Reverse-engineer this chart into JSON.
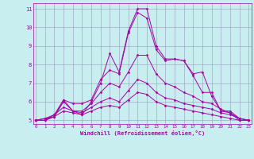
{
  "xlabel": "Windchill (Refroidissement éolien,°C)",
  "background_color": "#c8eef0",
  "line_color": "#aa00aa",
  "grid_color": "#9999bb",
  "xmin": 0,
  "xmax": 23,
  "ymin": 5,
  "ymax": 11,
  "lines": [
    [
      5.0,
      5.0,
      5.2,
      6.1,
      5.5,
      5.3,
      6.0,
      7.0,
      8.6,
      7.6,
      9.8,
      11.0,
      11.0,
      9.0,
      8.3,
      8.3,
      8.2,
      7.5,
      7.6,
      6.3,
      5.5,
      5.4,
      5.0,
      5.0
    ],
    [
      5.0,
      5.0,
      5.3,
      6.1,
      5.9,
      5.9,
      6.1,
      7.2,
      7.7,
      7.5,
      9.7,
      10.8,
      10.5,
      8.8,
      8.2,
      8.3,
      8.2,
      7.4,
      6.5,
      6.5,
      5.5,
      5.5,
      5.1,
      5.0
    ],
    [
      5.0,
      5.0,
      5.2,
      6.0,
      5.5,
      5.5,
      5.9,
      6.5,
      7.0,
      6.8,
      7.6,
      8.5,
      8.5,
      7.5,
      7.0,
      6.8,
      6.5,
      6.3,
      6.0,
      5.9,
      5.6,
      5.4,
      5.1,
      5.0
    ],
    [
      5.0,
      5.1,
      5.3,
      5.7,
      5.5,
      5.4,
      5.7,
      6.0,
      6.2,
      6.0,
      6.6,
      7.2,
      7.0,
      6.5,
      6.2,
      6.1,
      5.9,
      5.8,
      5.7,
      5.6,
      5.4,
      5.3,
      5.1,
      5.0
    ],
    [
      5.0,
      5.1,
      5.2,
      5.5,
      5.4,
      5.3,
      5.5,
      5.7,
      5.8,
      5.7,
      6.1,
      6.5,
      6.4,
      6.0,
      5.8,
      5.7,
      5.6,
      5.5,
      5.4,
      5.3,
      5.2,
      5.1,
      5.0,
      5.0
    ]
  ]
}
